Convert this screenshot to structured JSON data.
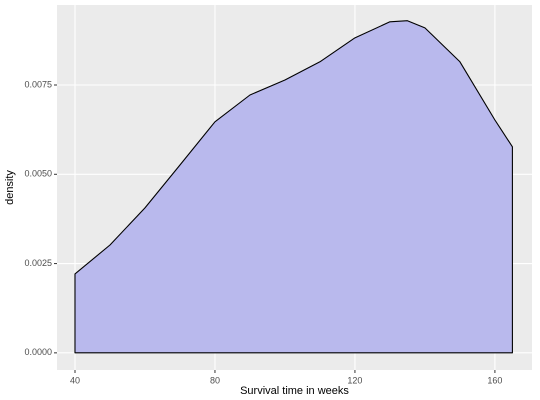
{
  "chart_data": {
    "type": "area",
    "x_label": "Survival time in weeks",
    "y_label": "density",
    "x": [
      40,
      50,
      60,
      70,
      80,
      90,
      100,
      110,
      120,
      130,
      135,
      140,
      150,
      160,
      165
    ],
    "series": [
      {
        "color": "#b9b9ed",
        "values": [
          0.00221,
          0.00302,
          0.00406,
          0.00526,
          0.00647,
          0.00722,
          0.00764,
          0.00815,
          0.00882,
          0.00927,
          0.0093,
          0.0091,
          0.00815,
          0.00652,
          0.00577
        ]
      }
    ],
    "xlim": [
      34.86,
      170.6
    ],
    "ylim": [
      -0.00048,
      0.00974
    ],
    "xticks": [
      40,
      80,
      120,
      160
    ],
    "yticks": [
      {
        "value": 0,
        "label": "0.0000"
      },
      {
        "value": 0.0025,
        "label": "0.0025"
      },
      {
        "value": 0.005,
        "label": "0.0050"
      },
      {
        "value": 0.0075,
        "label": "0.0075"
      }
    ],
    "grid": true
  }
}
